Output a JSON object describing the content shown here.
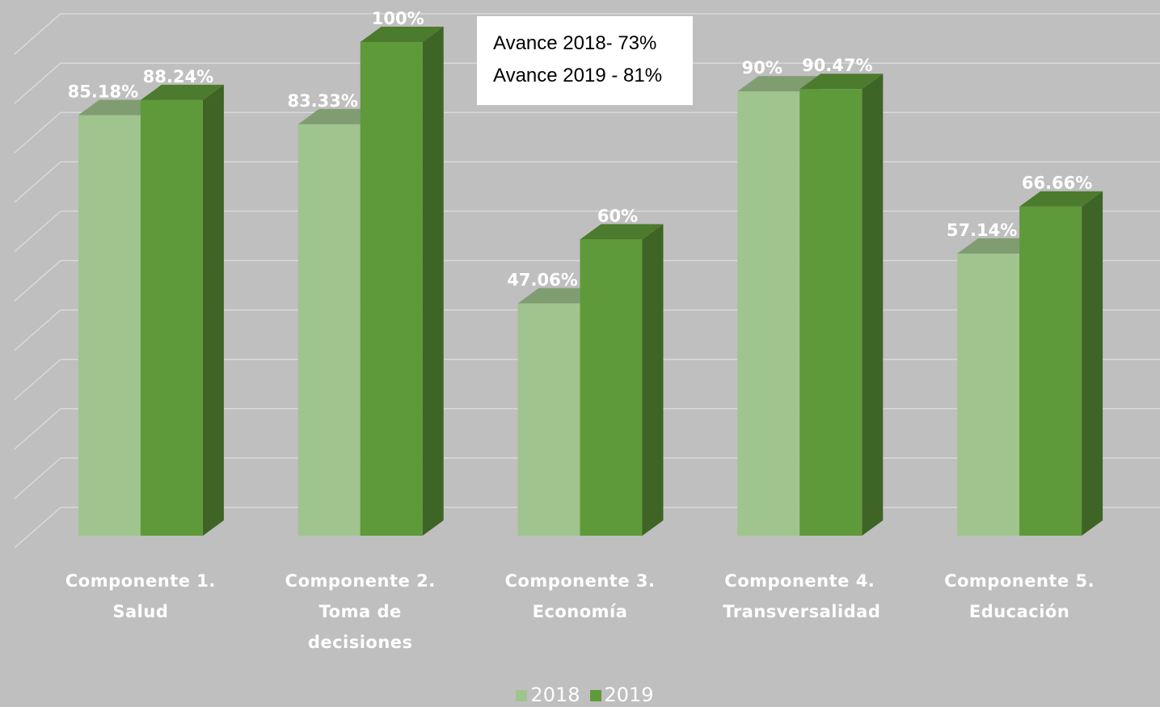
{
  "chart_data": {
    "type": "bar3d",
    "categories": [
      "Componente 1. Salud",
      "Componente 2. Toma de decisiones",
      "Componente 3. Economía",
      "Componente 4. Transversalidad",
      "Componente 5. Educación"
    ],
    "series": [
      {
        "name": "2018",
        "color": "#a0c48e",
        "values": [
          85.18,
          83.33,
          47.06,
          90,
          57.14
        ],
        "value_labels": [
          "85.18%",
          "83.33%",
          "47.06%",
          "90%",
          "57.14%"
        ]
      },
      {
        "name": "2019",
        "color": "#5f9a3a",
        "values": [
          88.24,
          100,
          60,
          90.47,
          66.66
        ],
        "value_labels": [
          "88.24%",
          "100%",
          "60%",
          "90.47%",
          "66.66%"
        ]
      }
    ],
    "annotations": [
      "Avance 2018- 73%",
      "Avance 2019 - 81%"
    ],
    "ylim": [
      0,
      100
    ],
    "yticks": [
      0,
      10,
      20,
      30,
      40,
      50,
      60,
      70,
      80,
      90,
      100
    ],
    "grid": true
  }
}
